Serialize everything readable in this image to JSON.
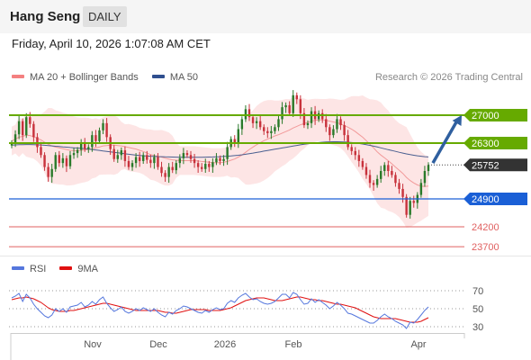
{
  "header": {
    "instrument": "Hang Seng",
    "interval": "DAILY",
    "datetime": "Friday, April 10, 2026 1:07:08 AM CET"
  },
  "legend": {
    "price_items": [
      {
        "label": "MA 20 + Bollinger Bands",
        "color": "#f48080"
      },
      {
        "label": "MA 50",
        "color": "#2f4f8f"
      }
    ],
    "rsi_items": [
      {
        "label": "RSI",
        "color": "#5577dd"
      },
      {
        "label": "9MA",
        "color": "#e01010"
      }
    ]
  },
  "copyright": "Research © 2026 Trading Central",
  "colors": {
    "up_candle": "#2a7a2a",
    "down_candle": "#c8323c",
    "resistance": "#66aa00",
    "pivot": "#1a5fd6",
    "support": "#e06060",
    "last_price": "#333333",
    "band_fill": "#fde0e0",
    "forecast_arrow": "#2f5f9f"
  },
  "chart_data": [
    {
      "type": "candlestick",
      "title": "Hang Seng",
      "ylim": [
        23500,
        27700
      ],
      "x_ticks": [
        "Nov",
        "Dec",
        "2026",
        "Feb",
        "Apr"
      ],
      "levels": [
        {
          "label": "27000",
          "value": 27000,
          "kind": "resistance"
        },
        {
          "label": "26300",
          "value": 26300,
          "kind": "resistance"
        },
        {
          "label": "25752",
          "value": 25752,
          "kind": "last"
        },
        {
          "label": "24900",
          "value": 24900,
          "kind": "pivot"
        },
        {
          "label": "24200",
          "value": 24200,
          "kind": "support"
        },
        {
          "label": "23700",
          "value": 23700,
          "kind": "support"
        }
      ],
      "forecast": {
        "from": 25800,
        "to": 27000
      },
      "closes": [
        26300,
        26520,
        26850,
        26500,
        26950,
        26780,
        26450,
        26200,
        26000,
        25700,
        25450,
        25650,
        26000,
        25800,
        25920,
        25720,
        26000,
        26050,
        26130,
        26300,
        26150,
        26200,
        26500,
        26350,
        26620,
        26800,
        26450,
        26150,
        25900,
        26000,
        26120,
        25850,
        25700,
        25800,
        25950,
        25850,
        26000,
        25880,
        25800,
        25950,
        25700,
        25550,
        25450,
        25700,
        25620,
        25800,
        25920,
        26050,
        26000,
        25900,
        25800,
        25700,
        25650,
        25780,
        25700,
        25820,
        25920,
        25850,
        25900,
        26200,
        26400,
        26300,
        26650,
        26900,
        27150,
        26950,
        26800,
        26850,
        26700,
        26600,
        26550,
        26600,
        26700,
        26900,
        27200,
        27250,
        27050,
        27500,
        27400,
        27050,
        26750,
        26800,
        27100,
        26900,
        27050,
        26900,
        26700,
        26500,
        26650,
        26900,
        26750,
        26500,
        26200,
        26100,
        26000,
        25850,
        25700,
        25500,
        25300,
        25250,
        25400,
        25600,
        25750,
        25600,
        25500,
        25300,
        25150,
        24950,
        24500,
        24850,
        24800,
        25000,
        25300,
        25600,
        25750
      ],
      "ma20": [
        26350,
        26400,
        26450,
        26470,
        26500,
        26490,
        26460,
        26420,
        26380,
        26320,
        26270,
        26230,
        26200,
        26180,
        26160,
        26140,
        26120,
        26110,
        26110,
        26120,
        26130,
        26140,
        26160,
        26180,
        26200,
        26230,
        26240,
        26250,
        26250,
        26240,
        26230,
        26210,
        26190,
        26170,
        26150,
        26120,
        26090,
        26050,
        26010,
        25990,
        25970,
        25950,
        25920,
        25900,
        25880,
        25870,
        25860,
        25860,
        25860,
        25860,
        25860,
        25850,
        25840,
        25830,
        25820,
        25810,
        25810,
        25810,
        25820,
        25840,
        25870,
        25900,
        25950,
        26000,
        26070,
        26140,
        26200,
        26260,
        26310,
        26360,
        26400,
        26440,
        26480,
        26510,
        26550,
        26590,
        26630,
        26680,
        26720,
        26760,
        26790,
        26820,
        26850,
        26870,
        26880,
        26880,
        26870,
        26850,
        26830,
        26810,
        26780,
        26740,
        26700,
        26650,
        26590,
        26520,
        26450,
        26360,
        26270,
        26180,
        26080,
        26000,
        25930,
        25860,
        25780,
        25700,
        25620,
        25540,
        25440,
        25360,
        25300,
        25250,
        25220,
        25210,
        25220
      ],
      "ma50": [
        26250,
        26255,
        26260,
        26262,
        26265,
        26265,
        26262,
        26258,
        26252,
        26245,
        26238,
        26230,
        26222,
        26214,
        26206,
        26198,
        26190,
        26182,
        26175,
        26168,
        26160,
        26150,
        26140,
        26128,
        26116,
        26104,
        26092,
        26080,
        26068,
        26056,
        26044,
        26032,
        26020,
        26008,
        25998,
        25990,
        25982,
        25976,
        25970,
        25966,
        25962,
        25958,
        25955,
        25952,
        25950,
        25948,
        25946,
        25945,
        25944,
        25944,
        25944,
        25945,
        25946,
        25948,
        25950,
        25953,
        25956,
        25960,
        25965,
        25970,
        25977,
        25985,
        25995,
        26007,
        26020,
        26035,
        26050,
        26066,
        26082,
        26098,
        26114,
        26130,
        26146,
        26162,
        26178,
        26194,
        26210,
        26226,
        26242,
        26256,
        26270,
        26282,
        26294,
        26304,
        26314,
        26322,
        26328,
        26332,
        26334,
        26334,
        26332,
        26328,
        26322,
        26314,
        26304,
        26292,
        26278,
        26262,
        26244,
        26224,
        26202,
        26180,
        26158,
        26136,
        26114,
        26092,
        26070,
        26050,
        26030,
        26012,
        25996,
        25982,
        25970,
        25960,
        25952
      ]
    },
    {
      "type": "line",
      "title": "RSI",
      "ylim": [
        25,
        80
      ],
      "y_ticks": [
        "70",
        "50",
        "30"
      ],
      "rsi": [
        62,
        64,
        67,
        58,
        66,
        62,
        55,
        50,
        46,
        42,
        40,
        43,
        50,
        47,
        50,
        46,
        52,
        53,
        54,
        57,
        52,
        54,
        58,
        55,
        60,
        63,
        56,
        51,
        47,
        49,
        52,
        47,
        45,
        47,
        50,
        48,
        51,
        49,
        47,
        50,
        46,
        43,
        41,
        46,
        44,
        48,
        50,
        53,
        52,
        50,
        48,
        46,
        45,
        48,
        46,
        49,
        51,
        49,
        50,
        56,
        59,
        57,
        62,
        65,
        67,
        63,
        60,
        61,
        58,
        56,
        55,
        56,
        58,
        62,
        66,
        66,
        62,
        68,
        66,
        60,
        55,
        56,
        61,
        57,
        60,
        57,
        54,
        50,
        53,
        57,
        54,
        50,
        45,
        44,
        42,
        40,
        38,
        36,
        34,
        34,
        37,
        41,
        44,
        41,
        39,
        36,
        34,
        32,
        28,
        35,
        34,
        38,
        43,
        48,
        52
      ],
      "ma9": [
        60,
        61,
        62,
        62,
        63,
        62,
        61,
        59,
        57,
        54,
        51,
        49,
        48,
        47,
        47,
        47,
        48,
        48,
        49,
        50,
        51,
        52,
        53,
        54,
        55,
        56,
        56,
        55,
        54,
        53,
        52,
        51,
        50,
        49,
        48,
        48,
        48,
        48,
        48,
        48,
        48,
        47,
        46,
        46,
        45,
        45,
        46,
        47,
        48,
        49,
        49,
        49,
        49,
        49,
        48,
        48,
        48,
        48,
        49,
        50,
        51,
        53,
        55,
        57,
        59,
        60,
        61,
        62,
        62,
        62,
        61,
        60,
        59,
        59,
        59,
        60,
        61,
        62,
        63,
        63,
        62,
        61,
        60,
        60,
        59,
        59,
        58,
        57,
        56,
        55,
        55,
        54,
        53,
        52,
        51,
        49,
        47,
        45,
        43,
        41,
        40,
        39,
        39,
        39,
        39,
        39,
        38,
        37,
        36,
        35,
        35,
        35,
        36,
        38,
        40
      ]
    }
  ]
}
